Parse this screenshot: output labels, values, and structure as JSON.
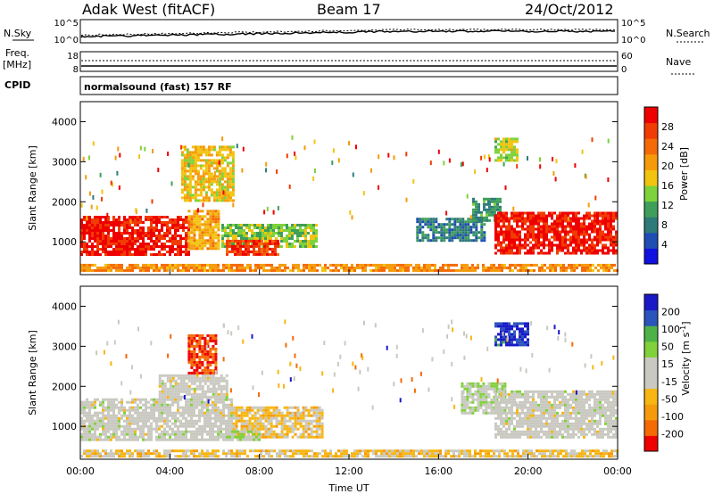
{
  "header": {
    "station": "Adak West (fitACF)",
    "beam": "Beam 17",
    "date": "24/Oct/2012"
  },
  "top_panels": {
    "nsky_label": "N.Sky",
    "nsky_ticks": [
      "10^5",
      "10^0"
    ],
    "nsearch_label": "N.Search",
    "nsearch_ticks": [
      "10^5",
      "10^0"
    ],
    "freq_label": "Freq.",
    "freq_unit": "[MHz]",
    "freq_ticks": [
      "18",
      "8"
    ],
    "nave_label": "Nave",
    "nave_ticks": [
      "60",
      "0"
    ],
    "cpid_label": "CPID",
    "cpid_text": "normalsound (fast) 157 RF"
  },
  "colors": {
    "power": [
      "#1010e0",
      "#1e4db4",
      "#2e7a7a",
      "#3f9f5a",
      "#7ed23a",
      "#f2c40f",
      "#f59b0a",
      "#f46a06",
      "#f13c03",
      "#ef0000"
    ],
    "velocity": [
      "#ee0000",
      "#f46a05",
      "#f59b0b",
      "#f7b611",
      "#c9c9c1",
      "#c9c9c1",
      "#80d13a",
      "#4fb249",
      "#2c54bd",
      "#1919c8"
    ]
  },
  "chart_data": [
    {
      "type": "heatmap",
      "name_axis": "Slant Range [km]",
      "ylabel": "Slant Range [km]",
      "xlabel": "Time UT",
      "colorbar_label": "Power [dB]",
      "colorbar_ticks": [
        "28",
        "24",
        "20",
        "16",
        "12",
        "8",
        "4"
      ],
      "colorbar_range": [
        0,
        32
      ],
      "ylim": [
        180,
        4500
      ],
      "y_ticks": [
        "1000",
        "2000",
        "3000",
        "4000"
      ],
      "xlim": [
        0,
        24
      ],
      "x_ticks": [
        "00:00",
        "04:00",
        "08:00",
        "12:00",
        "16:00",
        "20:00",
        "00:00"
      ],
      "regions": [
        {
          "t": [
            0.0,
            4.8
          ],
          "range": [
            650,
            1650
          ],
          "value": 30
        },
        {
          "t": [
            4.8,
            6.2
          ],
          "range": [
            800,
            1800
          ],
          "value": 20
        },
        {
          "t": [
            6.3,
            10.5
          ],
          "range": [
            850,
            1450
          ],
          "value": 14
        },
        {
          "t": [
            6.5,
            8.8
          ],
          "range": [
            700,
            1050
          ],
          "value": 28
        },
        {
          "t": [
            15.0,
            18.0
          ],
          "range": [
            1050,
            1600
          ],
          "value": 8
        },
        {
          "t": [
            17.5,
            18.8
          ],
          "range": [
            1500,
            2100
          ],
          "value": 10
        },
        {
          "t": [
            18.5,
            24.0
          ],
          "range": [
            700,
            1750
          ],
          "value": 30
        },
        {
          "t": [
            4.5,
            6.8
          ],
          "range": [
            2000,
            3400
          ],
          "value": 18
        },
        {
          "t": [
            18.5,
            19.5
          ],
          "range": [
            3000,
            3600
          ],
          "value": 16
        },
        {
          "t": [
            0.0,
            24.0
          ],
          "range": [
            300,
            450
          ],
          "value": 22
        }
      ]
    },
    {
      "type": "heatmap",
      "ylabel": "Slant Range [km]",
      "xlabel": "Time UT",
      "colorbar_label": "Velocity [m s^-1]",
      "colorbar_ticks": [
        "200",
        "100",
        "50",
        "15",
        "-15",
        "-50",
        "-100",
        "-200"
      ],
      "colorbar_range": [
        -250,
        250
      ],
      "ylim": [
        180,
        4500
      ],
      "y_ticks": [
        "1000",
        "2000",
        "3000",
        "4000"
      ],
      "xlim": [
        0,
        24
      ],
      "x_ticks": [
        "00:00",
        "04:00",
        "08:00",
        "12:00",
        "16:00",
        "20:00",
        "00:00"
      ],
      "regions": [
        {
          "t": [
            0.0,
            6.8
          ],
          "range": [
            650,
            1700
          ],
          "value": 0
        },
        {
          "t": [
            3.5,
            6.6
          ],
          "range": [
            1700,
            2300
          ],
          "value": 0
        },
        {
          "t": [
            4.8,
            6.0
          ],
          "range": [
            2300,
            3300
          ],
          "value": -200
        },
        {
          "t": [
            6.8,
            10.8
          ],
          "range": [
            700,
            1500
          ],
          "value": -60
        },
        {
          "t": [
            6.5,
            8.0
          ],
          "range": [
            650,
            900
          ],
          "value": 40
        },
        {
          "t": [
            17.0,
            19.0
          ],
          "range": [
            1300,
            2100
          ],
          "value": 40
        },
        {
          "t": [
            18.5,
            24.0
          ],
          "range": [
            700,
            1900
          ],
          "value": 0
        },
        {
          "t": [
            18.5,
            20.0
          ],
          "range": [
            3000,
            3600
          ],
          "value": 200
        },
        {
          "t": [
            0.0,
            24.0
          ],
          "range": [
            280,
            420
          ],
          "value": -60
        }
      ]
    }
  ]
}
